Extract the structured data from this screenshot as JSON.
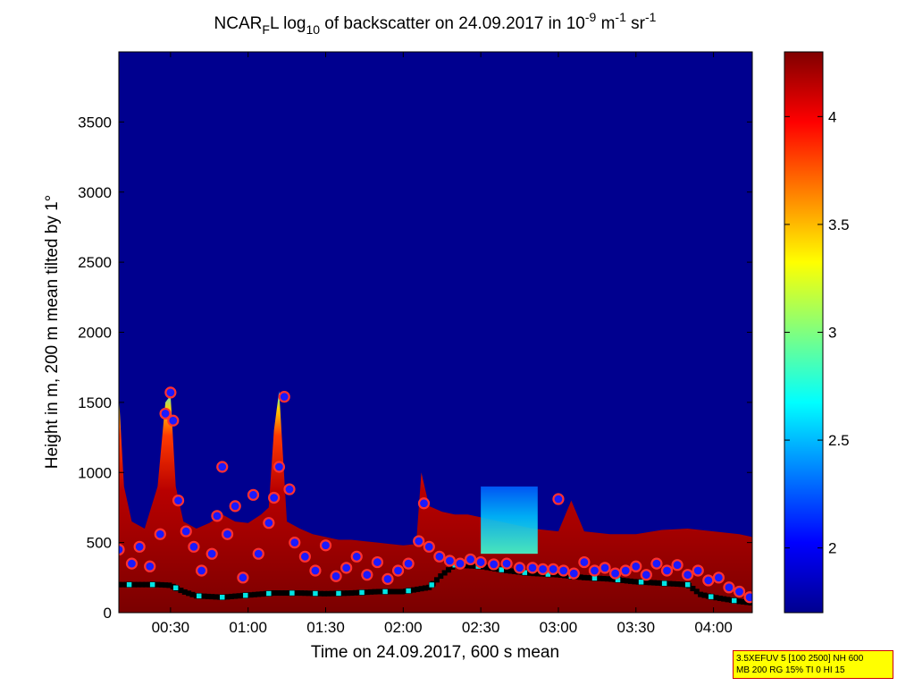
{
  "chart_data": {
    "type": "heatmap",
    "title": {
      "pre": "NCAR",
      "sub1": "F",
      "mid1": "L log",
      "sub2": "10",
      "mid2": " of backscatter on 24.09.2017 in 10",
      "sup1": "-9",
      "mid3": " m",
      "sup2": "-1",
      "mid4": " sr",
      "sup3": "-1"
    },
    "xlabel": "Time on 24.09.2017, 600 s mean",
    "ylabel": "Height in m, 200 m mean tilted by 1°",
    "x_range_minutes": [
      10,
      255
    ],
    "ylim": [
      0,
      4000
    ],
    "x_ticks": [
      {
        "minutes": 30,
        "label": "00:30"
      },
      {
        "minutes": 60,
        "label": "01:00"
      },
      {
        "minutes": 90,
        "label": "01:30"
      },
      {
        "minutes": 120,
        "label": "02:00"
      },
      {
        "minutes": 150,
        "label": "02:30"
      },
      {
        "minutes": 180,
        "label": "03:00"
      },
      {
        "minutes": 210,
        "label": "03:30"
      },
      {
        "minutes": 240,
        "label": "04:00"
      }
    ],
    "y_ticks": [
      {
        "value": 0,
        "label": "0"
      },
      {
        "value": 500,
        "label": "500"
      },
      {
        "value": 1000,
        "label": "1000"
      },
      {
        "value": 1500,
        "label": "1500"
      },
      {
        "value": 2000,
        "label": "2000"
      },
      {
        "value": 2500,
        "label": "2500"
      },
      {
        "value": 3000,
        "label": "3000"
      },
      {
        "value": 3500,
        "label": "3500"
      }
    ],
    "colorbar": {
      "range": [
        1.7,
        4.3
      ],
      "colormap": "jet",
      "ticks": [
        {
          "value": 2,
          "label": "2"
        },
        {
          "value": 2.5,
          "label": "2.5"
        },
        {
          "value": 3,
          "label": "3"
        },
        {
          "value": 3.5,
          "label": "3.5"
        },
        {
          "value": 4,
          "label": "4"
        }
      ]
    },
    "aerosol_top_height_m": [
      [
        10,
        1550
      ],
      [
        12,
        900
      ],
      [
        15,
        650
      ],
      [
        20,
        600
      ],
      [
        25,
        900
      ],
      [
        28,
        1500
      ],
      [
        30,
        1550
      ],
      [
        32,
        900
      ],
      [
        35,
        650
      ],
      [
        40,
        600
      ],
      [
        45,
        640
      ],
      [
        50,
        700
      ],
      [
        55,
        650
      ],
      [
        60,
        640
      ],
      [
        65,
        700
      ],
      [
        68,
        750
      ],
      [
        70,
        1300
      ],
      [
        72,
        1580
      ],
      [
        75,
        650
      ],
      [
        80,
        600
      ],
      [
        85,
        560
      ],
      [
        90,
        540
      ],
      [
        95,
        520
      ],
      [
        100,
        520
      ],
      [
        105,
        510
      ],
      [
        110,
        500
      ],
      [
        115,
        490
      ],
      [
        120,
        480
      ],
      [
        125,
        490
      ],
      [
        127,
        1000
      ],
      [
        130,
        760
      ],
      [
        135,
        720
      ],
      [
        140,
        700
      ],
      [
        145,
        700
      ],
      [
        150,
        680
      ],
      [
        160,
        640
      ],
      [
        170,
        600
      ],
      [
        180,
        580
      ],
      [
        185,
        800
      ],
      [
        190,
        580
      ],
      [
        200,
        560
      ],
      [
        210,
        560
      ],
      [
        220,
        590
      ],
      [
        230,
        600
      ],
      [
        240,
        580
      ],
      [
        250,
        560
      ],
      [
        255,
        540
      ]
    ],
    "plume_region": {
      "x_minutes": [
        150,
        172
      ],
      "y_range_m": [
        420,
        900
      ],
      "color": "#00bfff"
    },
    "boundary_layer_height_m": [
      [
        10,
        450
      ],
      [
        15,
        350
      ],
      [
        18,
        470
      ],
      [
        22,
        330
      ],
      [
        26,
        560
      ],
      [
        28,
        1420
      ],
      [
        30,
        1570
      ],
      [
        31,
        1370
      ],
      [
        33,
        800
      ],
      [
        36,
        580
      ],
      [
        39,
        470
      ],
      [
        42,
        300
      ],
      [
        46,
        420
      ],
      [
        48,
        690
      ],
      [
        50,
        1040
      ],
      [
        52,
        560
      ],
      [
        55,
        760
      ],
      [
        58,
        250
      ],
      [
        62,
        840
      ],
      [
        64,
        420
      ],
      [
        68,
        640
      ],
      [
        70,
        820
      ],
      [
        72,
        1040
      ],
      [
        74,
        1540
      ],
      [
        76,
        880
      ],
      [
        78,
        500
      ],
      [
        82,
        400
      ],
      [
        86,
        300
      ],
      [
        90,
        480
      ],
      [
        94,
        260
      ],
      [
        98,
        320
      ],
      [
        102,
        400
      ],
      [
        106,
        270
      ],
      [
        110,
        360
      ],
      [
        114,
        240
      ],
      [
        118,
        300
      ],
      [
        122,
        350
      ],
      [
        126,
        510
      ],
      [
        128,
        780
      ],
      [
        130,
        470
      ],
      [
        134,
        400
      ],
      [
        138,
        370
      ],
      [
        142,
        350
      ],
      [
        146,
        380
      ],
      [
        150,
        360
      ],
      [
        155,
        345
      ],
      [
        160,
        350
      ],
      [
        165,
        320
      ],
      [
        170,
        320
      ],
      [
        174,
        310
      ],
      [
        178,
        310
      ],
      [
        180,
        810
      ],
      [
        182,
        300
      ],
      [
        186,
        280
      ],
      [
        190,
        360
      ],
      [
        194,
        300
      ],
      [
        198,
        320
      ],
      [
        202,
        280
      ],
      [
        206,
        300
      ],
      [
        210,
        330
      ],
      [
        214,
        270
      ],
      [
        218,
        350
      ],
      [
        222,
        300
      ],
      [
        226,
        340
      ],
      [
        230,
        270
      ],
      [
        234,
        300
      ],
      [
        238,
        230
      ],
      [
        242,
        250
      ],
      [
        246,
        180
      ],
      [
        250,
        150
      ],
      [
        254,
        110
      ]
    ],
    "mixing_layer_height_m": [
      [
        10,
        200
      ],
      [
        20,
        200
      ],
      [
        25,
        200
      ],
      [
        30,
        195
      ],
      [
        35,
        150
      ],
      [
        40,
        120
      ],
      [
        50,
        110
      ],
      [
        60,
        125
      ],
      [
        70,
        140
      ],
      [
        80,
        140
      ],
      [
        90,
        135
      ],
      [
        100,
        140
      ],
      [
        110,
        150
      ],
      [
        120,
        150
      ],
      [
        130,
        180
      ],
      [
        135,
        270
      ],
      [
        140,
        340
      ],
      [
        150,
        330
      ],
      [
        160,
        300
      ],
      [
        170,
        280
      ],
      [
        180,
        270
      ],
      [
        190,
        250
      ],
      [
        200,
        240
      ],
      [
        210,
        220
      ],
      [
        220,
        210
      ],
      [
        230,
        200
      ],
      [
        235,
        130
      ],
      [
        240,
        110
      ],
      [
        250,
        80
      ],
      [
        255,
        70
      ]
    ],
    "info_box": {
      "line1": "3.5XEFUV 5 [100 2500] NH 600",
      "line2": "MB 200 RG 15% TI 0 HI 15"
    },
    "colors": {
      "background_field": "#00008f",
      "ml_marker": "#000000",
      "ml_accent_marker": "#00e5e5",
      "bl_marker_fill": "#1a1aff",
      "bl_marker_ring": "#ff3030"
    }
  }
}
